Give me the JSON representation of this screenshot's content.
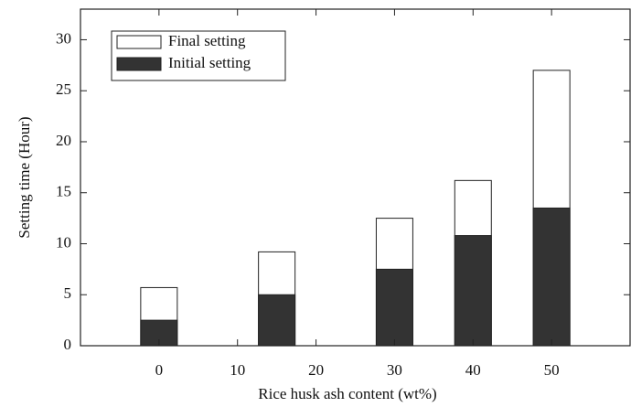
{
  "chart_data": {
    "type": "bar",
    "xlabel": "Rice husk ash content (wt%)",
    "ylabel": "Setting time (Hour)",
    "x": [
      0,
      15,
      30,
      40,
      50
    ],
    "series": [
      {
        "name": "Final setting",
        "color": "#ffffff",
        "values": [
          5.7,
          9.2,
          12.5,
          16.2,
          27
        ]
      },
      {
        "name": "Initial setting",
        "color": "#333333",
        "values": [
          2.5,
          5,
          7.5,
          10.8,
          13.5
        ]
      }
    ],
    "xlim": [
      -10,
      60
    ],
    "xticks": [
      0,
      10,
      20,
      30,
      40,
      50
    ],
    "ylim": [
      0,
      33
    ],
    "yticks": [
      0,
      5,
      10,
      15,
      20,
      25,
      30
    ],
    "legend": "upper left"
  }
}
